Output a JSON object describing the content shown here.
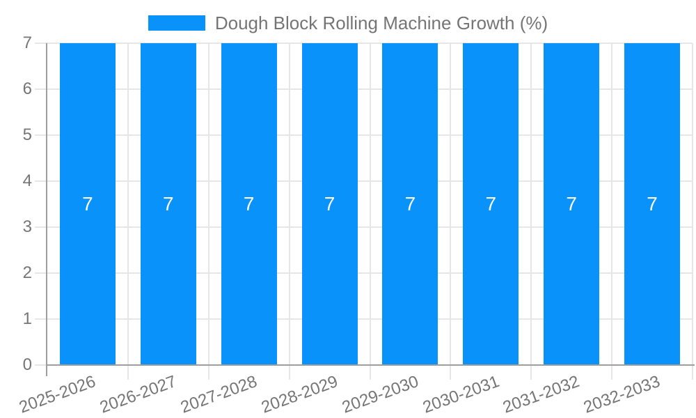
{
  "chart_data": {
    "type": "bar",
    "title": "Dough Block Rolling Machine Growth (%)",
    "legend": {
      "position": "top",
      "label": "Dough Block Rolling Machine Growth (%)"
    },
    "categories": [
      "2025-2026",
      "2026-2027",
      "2027-2028",
      "2028-2029",
      "2029-2030",
      "2030-2031",
      "2031-2032",
      "2032-2033"
    ],
    "values": [
      7,
      7,
      7,
      7,
      7,
      7,
      7,
      7
    ],
    "bar_value_labels": [
      "7",
      "7",
      "7",
      "7",
      "7",
      "7",
      "7",
      "7"
    ],
    "xlabel": "",
    "ylabel": "",
    "ylim": [
      0,
      7
    ],
    "yticks": [
      0,
      1,
      2,
      3,
      4,
      5,
      6,
      7
    ],
    "grid": true,
    "x_labels_rotated": true,
    "colors": {
      "bar": "#0892fa",
      "text": "#757575",
      "grid": "#e6e6e6",
      "axis": "#9e9e9e",
      "bar_label": "#ffffff",
      "background": "#ffffff"
    }
  }
}
